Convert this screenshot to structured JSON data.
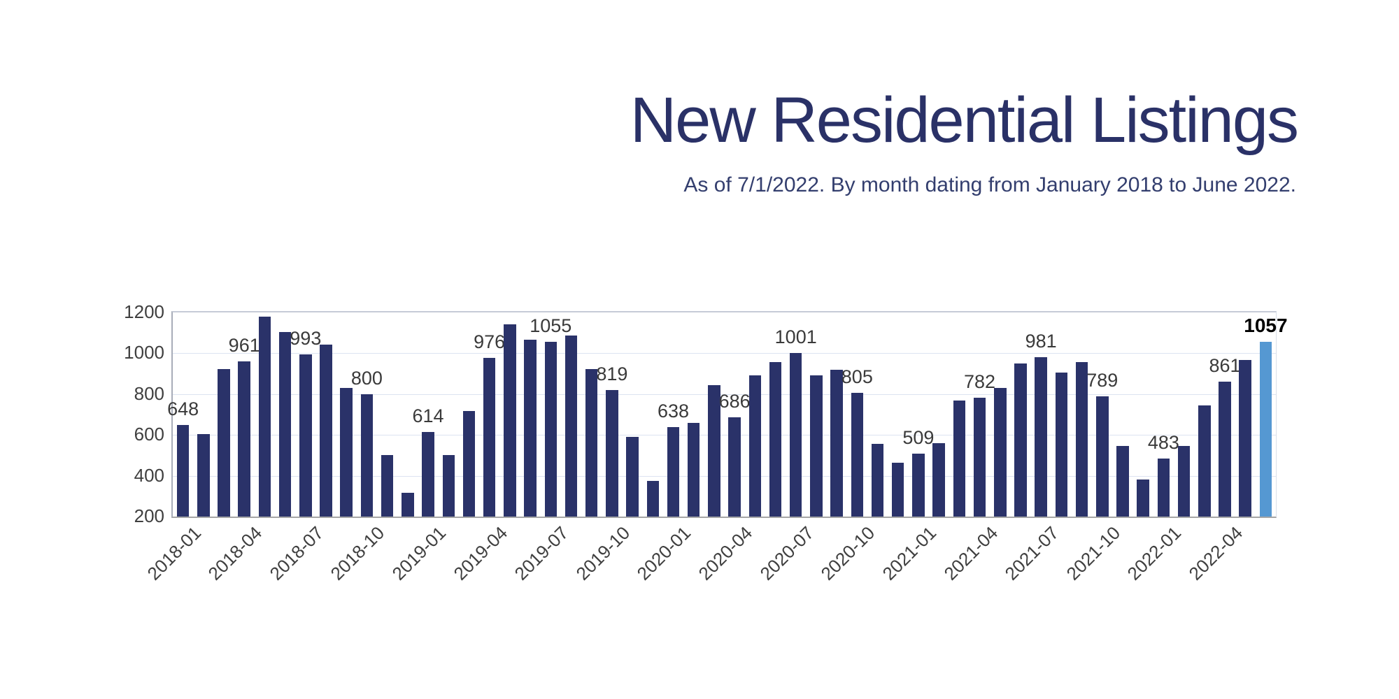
{
  "title": "New Residential Listings",
  "subtitle": "As of 7/1/2022. By month dating from January 2018 to June 2022.",
  "chart_data": {
    "type": "bar",
    "title": "New Residential Listings",
    "subtitle": "As of 7/1/2022. By month dating from January 2018 to June 2022.",
    "xlabel": "",
    "ylabel": "",
    "grid": true,
    "legend": false,
    "y_axis": {
      "min": 200,
      "max": 1200,
      "step": 200,
      "ticks": [
        200,
        400,
        600,
        800,
        1000,
        1200
      ]
    },
    "categories": [
      "2018-01",
      "2018-02",
      "2018-03",
      "2018-04",
      "2018-05",
      "2018-06",
      "2018-07",
      "2018-08",
      "2018-09",
      "2018-10",
      "2018-11",
      "2018-12",
      "2019-01",
      "2019-02",
      "2019-03",
      "2019-04",
      "2019-05",
      "2019-06",
      "2019-07",
      "2019-08",
      "2019-09",
      "2019-10",
      "2019-11",
      "2019-12",
      "2020-01",
      "2020-02",
      "2020-03",
      "2020-04",
      "2020-05",
      "2020-06",
      "2020-07",
      "2020-08",
      "2020-09",
      "2020-10",
      "2020-11",
      "2020-12",
      "2021-01",
      "2021-02",
      "2021-03",
      "2021-04",
      "2021-05",
      "2021-06",
      "2021-07",
      "2021-08",
      "2021-09",
      "2021-10",
      "2021-11",
      "2021-12",
      "2022-01",
      "2022-02",
      "2022-03",
      "2022-04",
      "2022-05",
      "2022-06"
    ],
    "values": [
      648,
      603,
      922,
      961,
      1179,
      1105,
      993,
      1042,
      831,
      800,
      503,
      315,
      614,
      503,
      718,
      976,
      1141,
      1068,
      1055,
      1088,
      921,
      819,
      591,
      375,
      638,
      659,
      843,
      686,
      893,
      956,
      1001,
      893,
      920,
      805,
      556,
      464,
      509,
      559,
      769,
      782,
      830,
      951,
      981,
      905,
      956,
      789,
      545,
      382,
      483,
      545,
      744,
      861,
      967,
      1057
    ],
    "labeled_categories": [
      "2018-01",
      "2018-04",
      "2018-07",
      "2018-10",
      "2019-01",
      "2019-04",
      "2019-07",
      "2019-10",
      "2020-01",
      "2020-04",
      "2020-07",
      "2020-10",
      "2021-01",
      "2021-04",
      "2021-07",
      "2021-10",
      "2022-01",
      "2022-04",
      "2022-06"
    ],
    "x_tick_labels": [
      "2018-01",
      "2018-04",
      "2018-07",
      "2018-10",
      "2019-01",
      "2019-04",
      "2019-07",
      "2019-10",
      "2020-01",
      "2020-04",
      "2020-07",
      "2020-10",
      "2021-01",
      "2021-04",
      "2021-07",
      "2021-10",
      "2022-01",
      "2022-04"
    ],
    "highlight_category": "2022-06",
    "colors": {
      "bar": "#2A3269",
      "highlight_bar": "#5598D2",
      "title_text": "#2A3167",
      "subtitle_text": "#333E6E",
      "gridline": "#DCE3F1",
      "axis_line": "#A6A6A6",
      "tick_text": "#3F3F3F",
      "data_label": "#3A3A3A",
      "highlight_label": "#000000"
    }
  }
}
